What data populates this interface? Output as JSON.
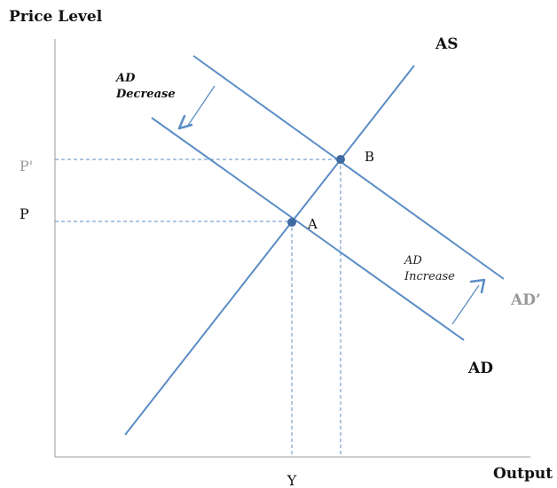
{
  "axes": {
    "y_title": "Price Level",
    "x_title": "Output"
  },
  "ticks": {
    "p_prime": "P'",
    "p": "P",
    "y": "Y"
  },
  "curves": {
    "as": "AS",
    "ad": "AD",
    "ad_prime": "AD’"
  },
  "points": {
    "a": "A",
    "b": "B"
  },
  "shifts": {
    "decrease_line1": "AD",
    "decrease_line2": "Decrease",
    "increase_line1": "AD",
    "increase_line2": "Increase"
  },
  "colors": {
    "line": "#5b8dc5",
    "axis": "#b0b0b0",
    "muted_text": "#888888",
    "dark_text": "#111111"
  }
}
